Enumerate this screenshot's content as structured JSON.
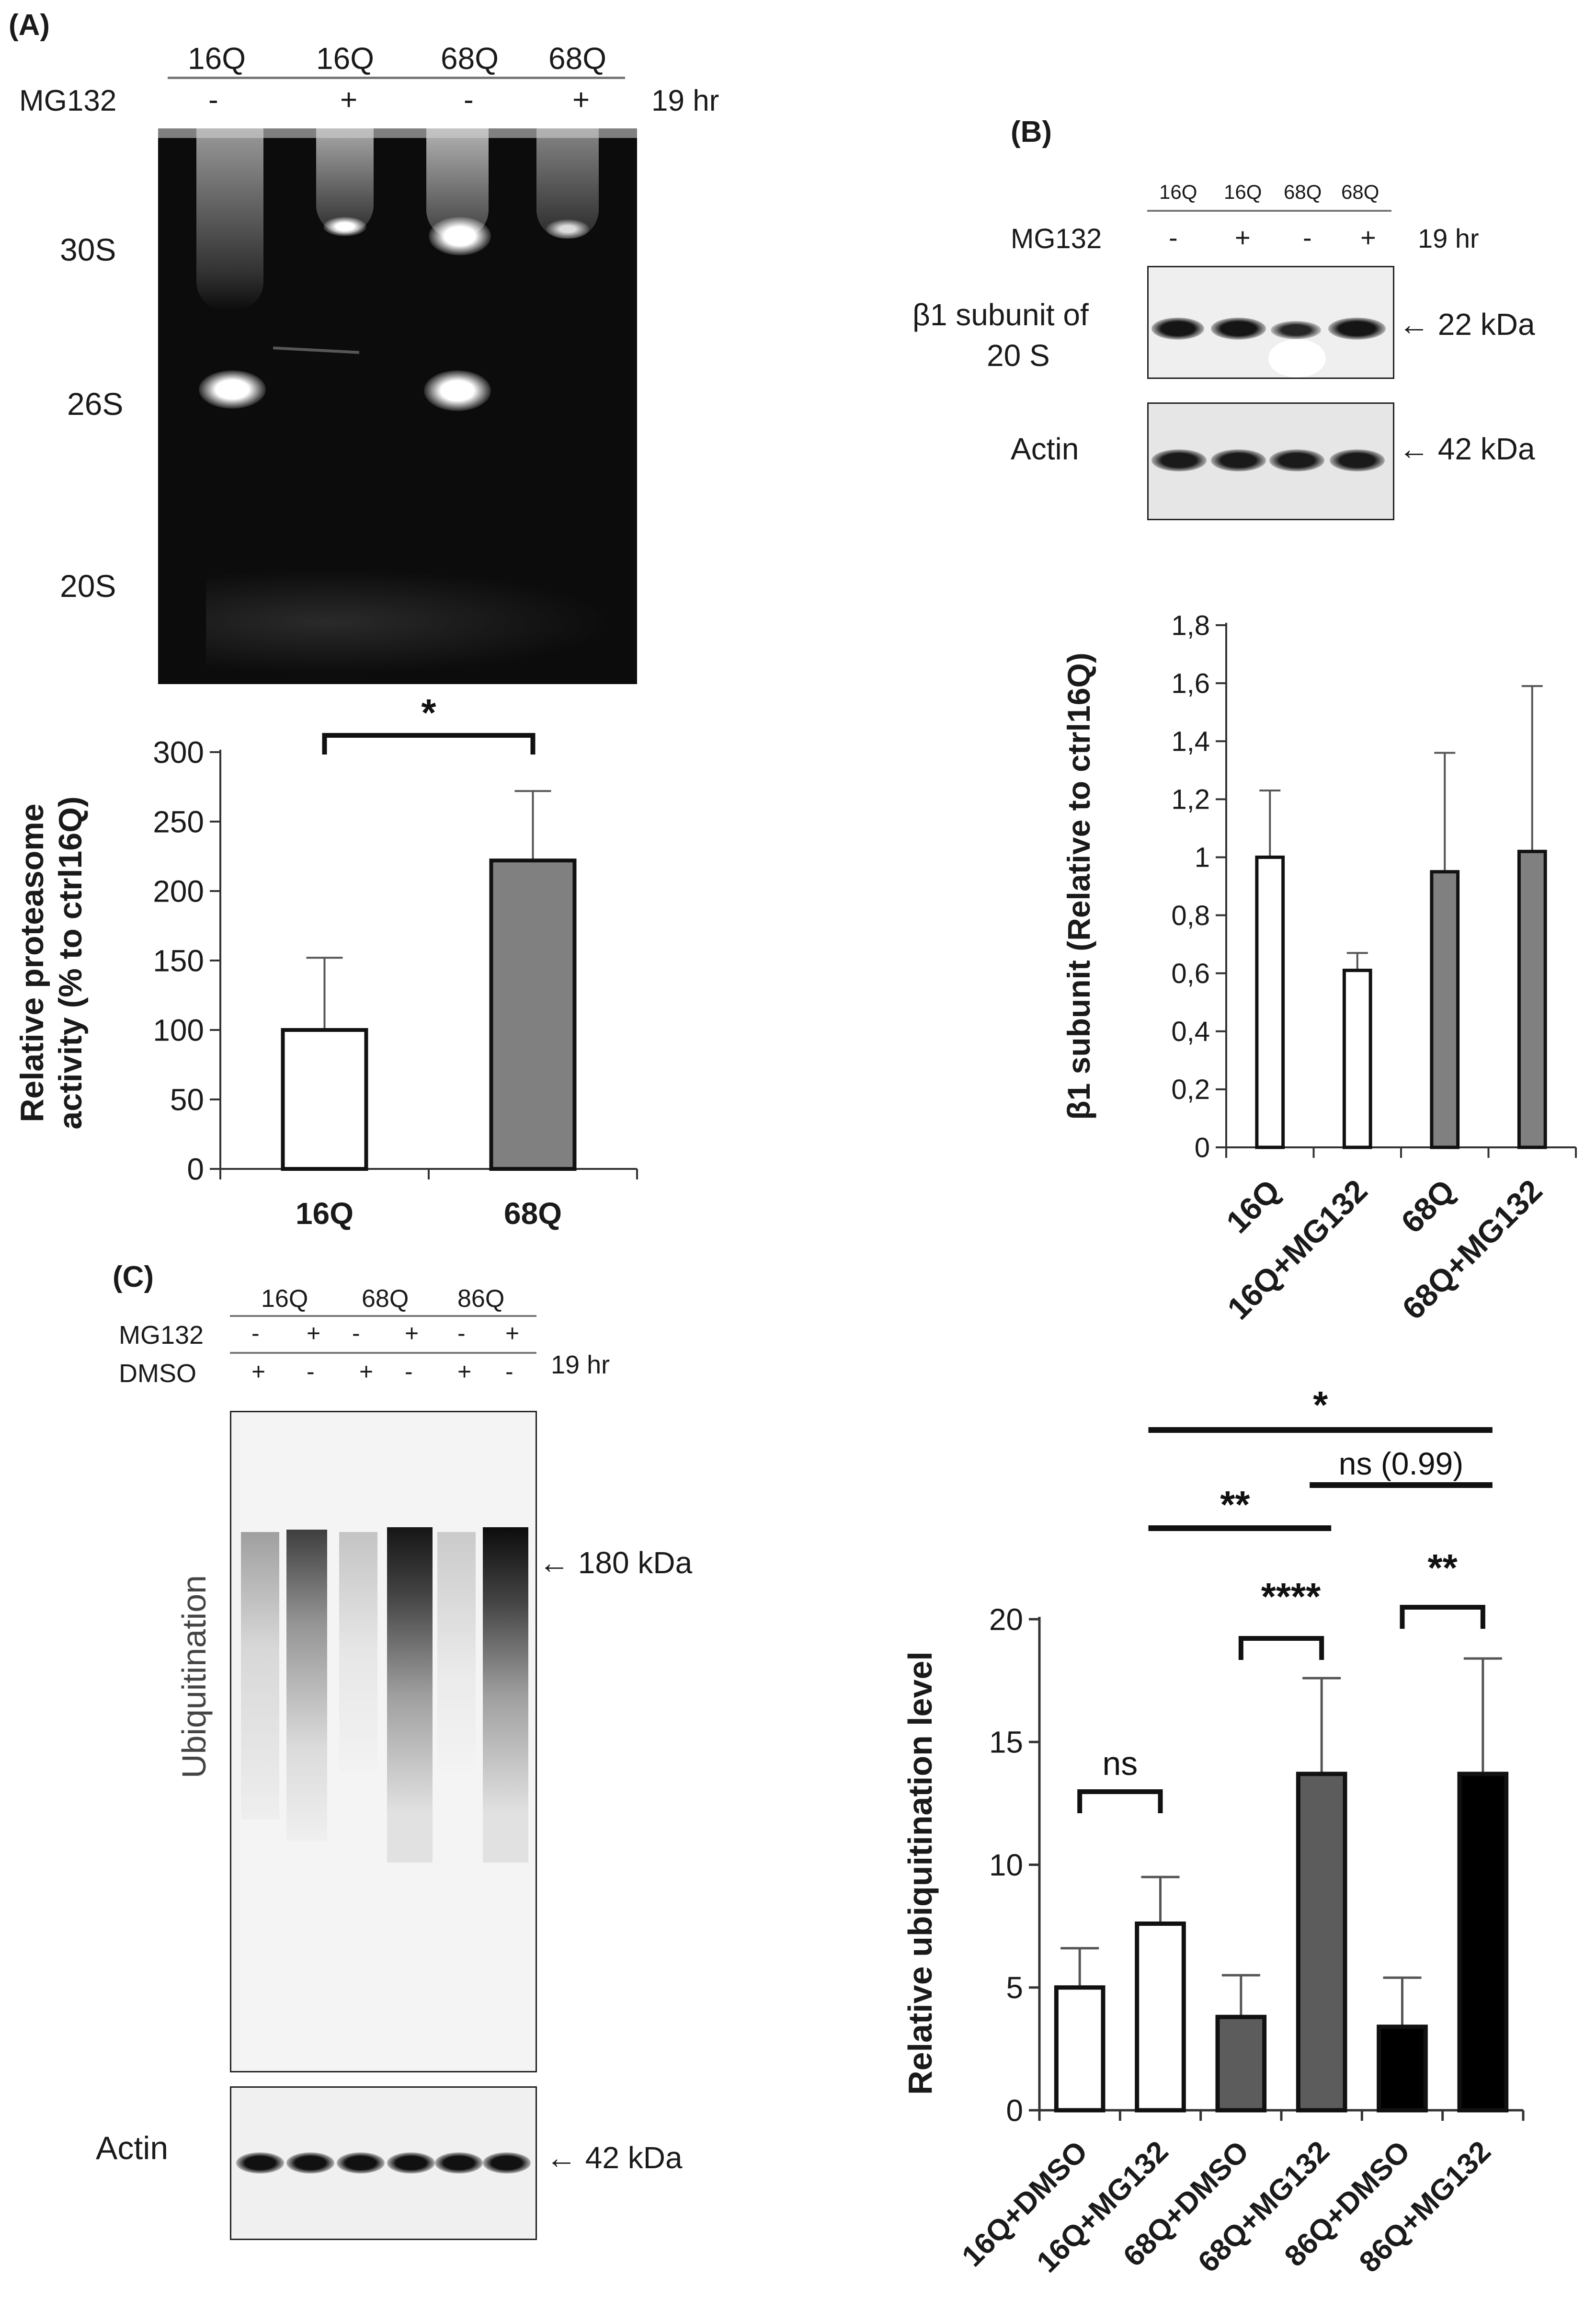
{
  "panelA": {
    "letter": "(A)",
    "lanes": [
      "16Q",
      "16Q",
      "68Q",
      "68Q"
    ],
    "mg132_label": "MG132",
    "mg132_signs": [
      "-",
      "+",
      "-",
      "+"
    ],
    "time": "19 hr",
    "markers": [
      "30S",
      "26S",
      "20S"
    ]
  },
  "panelB": {
    "letter": "(B)",
    "lanes": [
      "16Q",
      "16Q",
      "68Q",
      "68Q"
    ],
    "mg132_label": "MG132",
    "mg132_signs": [
      "-",
      "+",
      "-",
      "+"
    ],
    "time": "19 hr",
    "row1_label_line1": "β1 subunit  of",
    "row1_label_line2": "20 S",
    "row1_kda": "22 kDa",
    "row2_label": "Actin",
    "row2_kda": "42 kDa"
  },
  "panelC": {
    "letter": "(C)",
    "lanes": [
      "16Q",
      "68Q",
      "86Q"
    ],
    "mg132_label": "MG132",
    "mg132_signs": [
      "-",
      "+",
      "-",
      "+",
      "-",
      "+"
    ],
    "dmso_label": "DMSO",
    "dmso_signs": [
      "+",
      "-",
      "+",
      "-",
      "+",
      "-"
    ],
    "time": "19 hr",
    "ubi_label": "Ubiquitination",
    "ubi_kda": "180 kDa",
    "actin_label": "Actin",
    "actin_kda": "42 kDa"
  },
  "chart_data": [
    {
      "type": "bar",
      "panel": "A",
      "categories": [
        "16Q",
        "68Q"
      ],
      "values": [
        100,
        222
      ],
      "errors": [
        52,
        50
      ],
      "colors": [
        "#ffffff",
        "#808080"
      ],
      "ylabel_line1": "Relative proteasome",
      "ylabel_line2": "activity  (% to ctrl16Q)",
      "ylim": [
        0,
        300
      ],
      "yticks": [
        "0",
        "50",
        "100",
        "150",
        "200",
        "250",
        "300"
      ],
      "significance": [
        {
          "label": "*",
          "from": 0,
          "to": 1
        }
      ]
    },
    {
      "type": "bar",
      "panel": "B",
      "categories": [
        "16Q",
        "16Q+MG132",
        "68Q",
        "68Q+MG132"
      ],
      "values": [
        1.0,
        0.61,
        0.95,
        1.02
      ],
      "errors": [
        0.23,
        0.06,
        0.41,
        0.57
      ],
      "colors": [
        "#ffffff",
        "#ffffff",
        "#808080",
        "#808080"
      ],
      "ylabel": "β1 subunit (Relative to ctrl16Q)",
      "ylim": [
        0,
        1.8
      ],
      "yticks": [
        "0",
        "0,2",
        "0,4",
        "0,6",
        "0,8",
        "1",
        "1,2",
        "1,4",
        "1,6",
        "1,8"
      ]
    },
    {
      "type": "bar",
      "panel": "C",
      "categories": [
        "16Q+DMSO",
        "16Q+MG132",
        "68Q+DMSO",
        "68Q+MG132",
        "86Q+DMSO",
        "86Q+MG132"
      ],
      "values": [
        5.0,
        7.6,
        3.8,
        13.7,
        3.4,
        13.7
      ],
      "errors": [
        1.6,
        1.9,
        1.7,
        3.9,
        2.0,
        4.7
      ],
      "colors": [
        "#ffffff",
        "#ffffff",
        "#5c5c5c",
        "#5c5c5c",
        "#000000",
        "#000000"
      ],
      "ylabel": "Relative ubiquitination level",
      "ylim": [
        0,
        20
      ],
      "yticks": [
        "0",
        "5",
        "10",
        "15",
        "20"
      ],
      "significance": [
        {
          "label": "ns",
          "from": 0,
          "to": 1,
          "style": "bracket"
        },
        {
          "label": "****",
          "from": 2,
          "to": 3,
          "style": "bracket"
        },
        {
          "label": "**",
          "from": 4,
          "to": 5,
          "style": "bracket"
        },
        {
          "label": "**",
          "from": 1,
          "to": 3,
          "style": "bar"
        },
        {
          "label": "ns (0.99)",
          "from": 3,
          "to": 5,
          "style": "bar"
        },
        {
          "label": "*",
          "from": 1,
          "to": 5,
          "style": "bar"
        }
      ]
    }
  ]
}
